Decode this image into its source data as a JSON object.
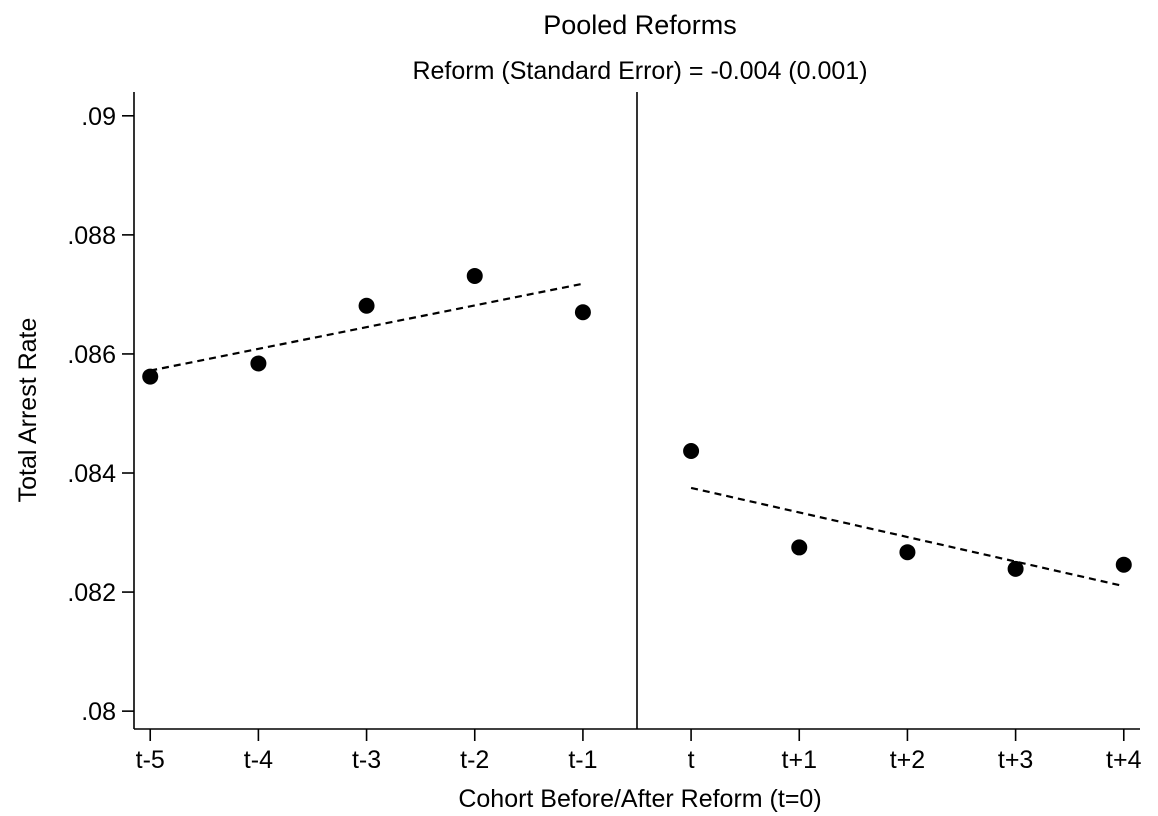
{
  "chart_data": {
    "type": "scatter",
    "title": "Pooled Reforms",
    "subtitle": "Reform (Standard Error) = -0.004 (0.001)",
    "xlabel": "Cohort Before/After Reform (t=0)",
    "ylabel": "Total Arrest Rate",
    "categories": [
      "t-5",
      "t-4",
      "t-3",
      "t-2",
      "t-1",
      "t",
      "t+1",
      "t+2",
      "t+3",
      "t+4"
    ],
    "x": [
      -5,
      -4,
      -3,
      -2,
      -1,
      0,
      1,
      2,
      3,
      4
    ],
    "values": [
      0.08562,
      0.08584,
      0.08681,
      0.08731,
      0.0867,
      0.08437,
      0.08275,
      0.08267,
      0.08239,
      0.08246
    ],
    "ylim": [
      0.0797,
      0.0904
    ],
    "xlim": [
      -5.15,
      4.15
    ],
    "yticks": [
      0.08,
      0.082,
      0.084,
      0.086,
      0.088,
      0.09
    ],
    "ytick_labels": [
      ".08",
      ".082",
      ".084",
      ".086",
      ".088",
      ".09"
    ],
    "reference_line_x": -0.5,
    "fit_lines": [
      {
        "x": [
          -5,
          -1
        ],
        "y": [
          0.08572,
          0.08718
        ]
      },
      {
        "x": [
          0,
          4
        ],
        "y": [
          0.08375,
          0.0821
        ]
      }
    ],
    "grid": false,
    "legend": "none"
  }
}
